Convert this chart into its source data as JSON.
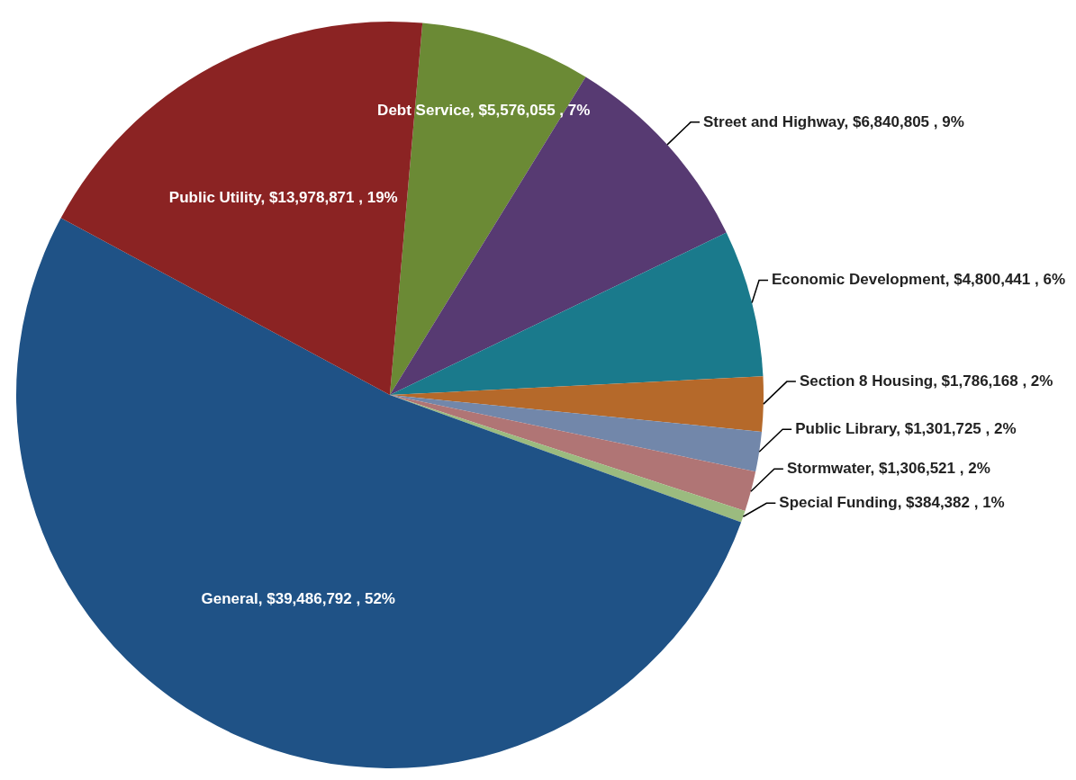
{
  "chart_data": {
    "type": "pie",
    "categories": [
      "Debt Service",
      "Street and Highway",
      "Economic Development",
      "Section 8 Housing",
      "Public Library",
      "Stormwater",
      "Special Funding",
      "General",
      "Public Utility"
    ],
    "values": [
      5576055,
      6840805,
      4800441,
      1786168,
      1301725,
      1306521,
      384382,
      39486792,
      13978871
    ],
    "colors": [
      "#6b8a35",
      "#573a72",
      "#1a7a8c",
      "#b5692a",
      "#7287aa",
      "#b07575",
      "#9bbb7f",
      "#1f5286",
      "#8b2323"
    ],
    "value_labels": [
      "$5,576,055 , 7%",
      "$6,840,805 , 9%",
      "$4,800,441 , 6%",
      "$1,786,168 , 2%",
      "$1,301,725 , 2%",
      "$1,306,521 , 2%",
      "$384,382 , 1%",
      "$39,486,792 , 52%",
      "$13,978,871 , 19%"
    ]
  }
}
